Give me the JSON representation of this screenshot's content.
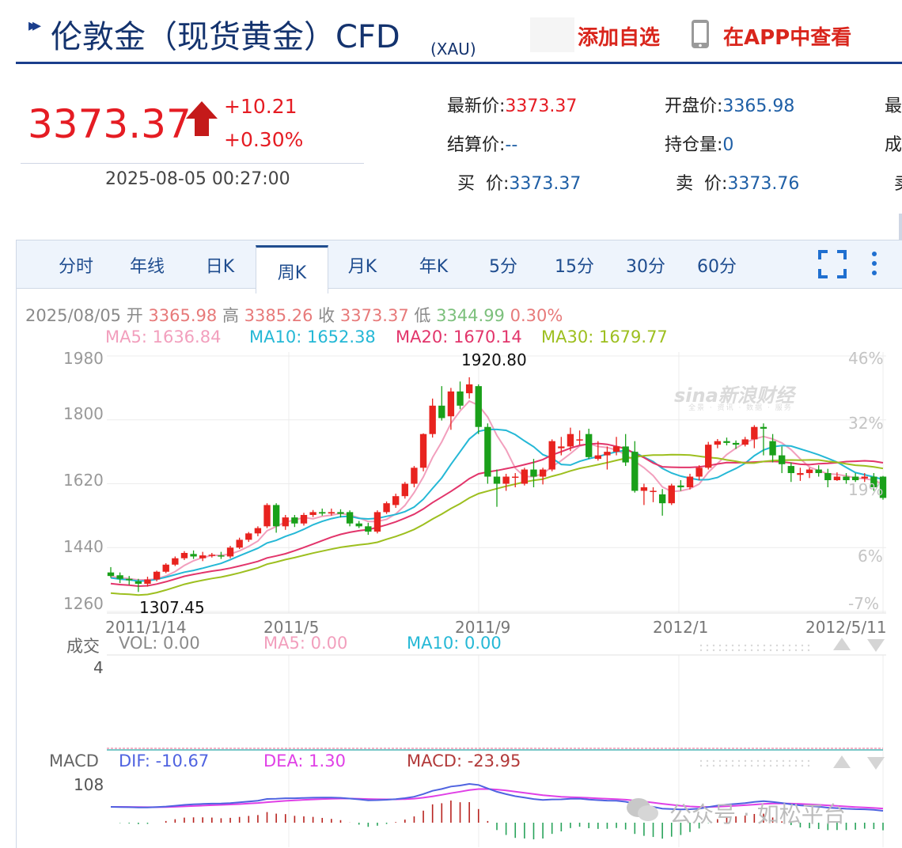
{
  "header": {
    "title": "伦敦金（现货黄金）CFD",
    "symbol": "(XAU)",
    "add_favorite": "添加自选",
    "view_in_app": "在APP中查看",
    "brand_color": "#14336e",
    "action_color": "#d9251c"
  },
  "quote": {
    "price": "3373.37",
    "change": "+10.21",
    "change_pct": "+0.30%",
    "time": "2025-08-05 00:27:00",
    "up_color": "#e51c23"
  },
  "stats": {
    "latest_label": "最新价:",
    "latest_value": "3373.37",
    "open_label": "开盘价:",
    "open_value": "3365.98",
    "settle_label": "结算价:",
    "settle_value": "--",
    "oi_label": "持仓量:",
    "oi_value": "0",
    "bid_label": "买  价:",
    "bid_value": "3373.37",
    "ask_label": "卖  价:",
    "ask_value": "3373.76",
    "cut1": "最",
    "cut2": "成",
    "cut3": "卖"
  },
  "tabs": [
    {
      "label": "分时"
    },
    {
      "label": "年线"
    },
    {
      "label": "日K"
    },
    {
      "label": "周K"
    },
    {
      "label": "月K"
    },
    {
      "label": "年K"
    },
    {
      "label": "5分"
    },
    {
      "label": "15分"
    },
    {
      "label": "30分"
    },
    {
      "label": "60分"
    }
  ],
  "active_tab": "周K",
  "ohlc_line": {
    "date": "2025/08/05",
    "open_label": "开",
    "open": "3365.98",
    "high_label": "高",
    "high": "3385.26",
    "close_label": "收",
    "close": "3373.37",
    "low_label": "低",
    "low": "3344.99",
    "pct": "0.30%"
  },
  "ma_line": {
    "ma5": "MA5: 1636.84",
    "ma10": "MA10: 1652.38",
    "ma20": "MA20: 1670.14",
    "ma30": "MA30: 1679.77",
    "colors": {
      "ma5": "#f29fbd",
      "ma10": "#25b8d6",
      "ma20": "#e2356b",
      "ma30": "#9dbf1f"
    }
  },
  "volume_line": {
    "label": "成交",
    "vol": "VOL: 0.00",
    "ma5": "MA5: 0.00",
    "ma10": "MA10: 0.00",
    "tick": "4"
  },
  "macd_line": {
    "label": "MACD",
    "dif": "DIF: -10.67",
    "dea": "DEA: 1.30",
    "macd": "MACD: -23.95",
    "tick": "108",
    "colors": {
      "dif": "#4f63e0",
      "dea": "#e040e6",
      "macd": "#b23a3a"
    }
  },
  "watermarks": {
    "sina": "sina新浪财经",
    "sina_sub": "全景 · 资讯 · 数据 · 服务",
    "wechat": "公众号 · 如松平台"
  },
  "chart_data": {
    "type": "candlestick",
    "y_axis_left": [
      "1980",
      "1800",
      "1620",
      "1440",
      "1260"
    ],
    "y_axis_right": [
      "46%",
      "32%",
      "19%",
      "6%",
      "-7%"
    ],
    "ylim": [
      1260,
      1980
    ],
    "x_labels": [
      "2011/1/14",
      "2011/5",
      "2011/9",
      "2012/1",
      "2012/5/11"
    ],
    "annotations": {
      "max": "1920.80",
      "min": "1307.45"
    },
    "up_color": "#e8231f",
    "down_color": "#1aa01a",
    "candles": [
      [
        1370,
        1360,
        1385,
        1355
      ],
      [
        1362,
        1352,
        1370,
        1340
      ],
      [
        1352,
        1348,
        1360,
        1335
      ],
      [
        1345,
        1338,
        1352,
        1315
      ],
      [
        1338,
        1350,
        1358,
        1330
      ],
      [
        1350,
        1372,
        1375,
        1345
      ],
      [
        1372,
        1392,
        1396,
        1368
      ],
      [
        1392,
        1410,
        1415,
        1388
      ],
      [
        1410,
        1425,
        1430,
        1405
      ],
      [
        1422,
        1415,
        1432,
        1408
      ],
      [
        1410,
        1418,
        1428,
        1402
      ],
      [
        1418,
        1420,
        1425,
        1412
      ],
      [
        1418,
        1415,
        1428,
        1408
      ],
      [
        1415,
        1440,
        1445,
        1410
      ],
      [
        1440,
        1462,
        1468,
        1436
      ],
      [
        1462,
        1480,
        1484,
        1456
      ],
      [
        1480,
        1495,
        1500,
        1472
      ],
      [
        1500,
        1560,
        1565,
        1495
      ],
      [
        1560,
        1500,
        1565,
        1482
      ],
      [
        1500,
        1525,
        1532,
        1490
      ],
      [
        1525,
        1508,
        1532,
        1498
      ],
      [
        1508,
        1532,
        1538,
        1502
      ],
      [
        1532,
        1540,
        1546,
        1526
      ],
      [
        1540,
        1536,
        1550,
        1530
      ],
      [
        1536,
        1540,
        1550,
        1530
      ],
      [
        1540,
        1535,
        1548,
        1525
      ],
      [
        1540,
        1508,
        1545,
        1500
      ],
      [
        1508,
        1500,
        1515,
        1495
      ],
      [
        1500,
        1485,
        1510,
        1476
      ],
      [
        1485,
        1540,
        1545,
        1480
      ],
      [
        1540,
        1565,
        1570,
        1535
      ],
      [
        1560,
        1585,
        1592,
        1552
      ],
      [
        1585,
        1620,
        1625,
        1578
      ],
      [
        1620,
        1665,
        1670,
        1610
      ],
      [
        1665,
        1760,
        1762,
        1655
      ],
      [
        1760,
        1840,
        1860,
        1750
      ],
      [
        1840,
        1805,
        1895,
        1798
      ],
      [
        1810,
        1880,
        1890,
        1772
      ],
      [
        1880,
        1840,
        1908,
        1830
      ],
      [
        1875,
        1900,
        1920,
        1860
      ],
      [
        1895,
        1780,
        1900,
        1760
      ],
      [
        1780,
        1640,
        1790,
        1620
      ],
      [
        1640,
        1620,
        1660,
        1555
      ],
      [
        1620,
        1640,
        1648,
        1600
      ],
      [
        1640,
        1640,
        1650,
        1610
      ],
      [
        1620,
        1660,
        1665,
        1615
      ],
      [
        1660,
        1640,
        1690,
        1610
      ],
      [
        1640,
        1660,
        1665,
        1618
      ],
      [
        1660,
        1740,
        1745,
        1655
      ],
      [
        1720,
        1725,
        1752,
        1700
      ],
      [
        1725,
        1760,
        1778,
        1712
      ],
      [
        1745,
        1745,
        1770,
        1730
      ],
      [
        1760,
        1695,
        1775,
        1690
      ],
      [
        1690,
        1700,
        1740,
        1685
      ],
      [
        1700,
        1710,
        1725,
        1660
      ],
      [
        1710,
        1725,
        1752,
        1700
      ],
      [
        1725,
        1680,
        1760,
        1670
      ],
      [
        1710,
        1600,
        1740,
        1595
      ],
      [
        1600,
        1610,
        1620,
        1560
      ],
      [
        1600,
        1600,
        1610,
        1568
      ],
      [
        1590,
        1565,
        1605,
        1530
      ],
      [
        1565,
        1615,
        1620,
        1560
      ],
      [
        1615,
        1610,
        1630,
        1600
      ],
      [
        1610,
        1640,
        1648,
        1604
      ],
      [
        1640,
        1665,
        1672,
        1630
      ],
      [
        1665,
        1730,
        1738,
        1660
      ],
      [
        1730,
        1740,
        1746,
        1720
      ],
      [
        1740,
        1735,
        1750,
        1728
      ],
      [
        1735,
        1730,
        1742,
        1718
      ],
      [
        1730,
        1745,
        1752,
        1725
      ],
      [
        1745,
        1780,
        1785,
        1720
      ],
      [
        1780,
        1775,
        1790,
        1700
      ],
      [
        1740,
        1700,
        1760,
        1680
      ],
      [
        1700,
        1675,
        1725,
        1650
      ],
      [
        1670,
        1650,
        1680,
        1625
      ],
      [
        1645,
        1650,
        1665,
        1628
      ],
      [
        1650,
        1660,
        1665,
        1636
      ],
      [
        1660,
        1650,
        1672,
        1640
      ],
      [
        1650,
        1630,
        1662,
        1610
      ],
      [
        1630,
        1640,
        1652,
        1628
      ],
      [
        1640,
        1630,
        1650,
        1620
      ],
      [
        1640,
        1630,
        1650,
        1625
      ],
      [
        1635,
        1640,
        1650,
        1625
      ],
      [
        1640,
        1610,
        1650,
        1600
      ],
      [
        1640,
        1580,
        1642,
        1575
      ]
    ]
  }
}
